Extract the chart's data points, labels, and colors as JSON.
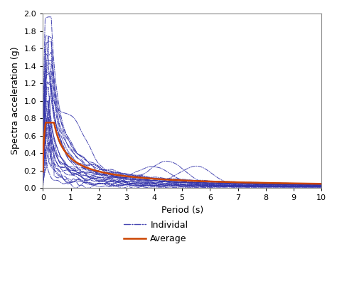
{
  "title": "",
  "xlabel": "Period (s)",
  "ylabel": "Spectra acceleration (g)",
  "xlim": [
    0,
    10
  ],
  "ylim": [
    0,
    2
  ],
  "xticks": [
    0,
    1,
    2,
    3,
    4,
    5,
    6,
    7,
    8,
    9,
    10
  ],
  "yticks": [
    0,
    0.2,
    0.4,
    0.6,
    0.8,
    1.0,
    1.2,
    1.4,
    1.6,
    1.8,
    2.0
  ],
  "individual_color": "#3333aa",
  "average_color": "#cc4400",
  "legend_labels": [
    "Individal",
    "Average"
  ],
  "background_color": "#ffffff",
  "spectra_params": [
    [
      0.08,
      1.95,
      0.5,
      0.3,
      1.1,
      0.0,
      null,
      0
    ],
    [
      0.1,
      1.75,
      0.5,
      0.3,
      1.05,
      0.0,
      null,
      0
    ],
    [
      0.12,
      1.65,
      0.5,
      0.3,
      1.0,
      0.0,
      null,
      0
    ],
    [
      0.1,
      1.55,
      0.5,
      0.3,
      1.05,
      0.0,
      null,
      0
    ],
    [
      0.12,
      1.45,
      0.5,
      0.3,
      1.0,
      0.0,
      null,
      0
    ],
    [
      0.15,
      1.4,
      0.5,
      0.25,
      1.0,
      0.0,
      null,
      0
    ],
    [
      0.1,
      1.35,
      0.5,
      0.3,
      1.05,
      0.0,
      null,
      0
    ],
    [
      0.12,
      1.3,
      0.5,
      0.25,
      1.0,
      0.0,
      null,
      0
    ],
    [
      0.15,
      1.25,
      0.5,
      0.25,
      1.0,
      0.0,
      null,
      0
    ],
    [
      0.1,
      1.2,
      0.5,
      0.3,
      1.05,
      0.0,
      null,
      0
    ],
    [
      0.2,
      1.55,
      0.6,
      0.15,
      0.9,
      0.0,
      1.0,
      0.55
    ],
    [
      0.15,
      1.15,
      0.5,
      0.2,
      1.0,
      0.0,
      null,
      0
    ],
    [
      0.25,
      1.1,
      0.6,
      0.2,
      0.95,
      0.0,
      null,
      0
    ],
    [
      0.1,
      1.05,
      0.5,
      0.2,
      1.05,
      0.0,
      null,
      0
    ],
    [
      0.15,
      1.0,
      0.55,
      0.18,
      1.0,
      0.0,
      null,
      0
    ],
    [
      0.2,
      0.95,
      0.6,
      0.15,
      0.9,
      0.0,
      null,
      0
    ],
    [
      0.12,
      0.9,
      0.5,
      0.22,
      1.0,
      0.0,
      null,
      0
    ],
    [
      0.18,
      0.85,
      0.55,
      0.2,
      0.95,
      0.35,
      4.5,
      0.25
    ],
    [
      0.15,
      0.8,
      0.5,
      0.18,
      1.0,
      0.0,
      null,
      0
    ],
    [
      0.2,
      0.75,
      0.55,
      0.15,
      0.9,
      0.28,
      5.5,
      0.22
    ],
    [
      0.25,
      0.7,
      0.6,
      0.12,
      0.85,
      0.32,
      4.0,
      0.18
    ],
    [
      0.15,
      0.65,
      0.5,
      0.15,
      1.0,
      0.0,
      null,
      0
    ],
    [
      0.3,
      0.6,
      0.65,
      0.1,
      0.8,
      0.0,
      null,
      0
    ],
    [
      0.2,
      0.55,
      0.55,
      0.12,
      0.9,
      0.0,
      null,
      0
    ],
    [
      0.4,
      0.5,
      0.7,
      0.08,
      0.75,
      0.0,
      null,
      0
    ],
    [
      0.1,
      0.45,
      0.5,
      0.08,
      1.05,
      0.0,
      null,
      0
    ]
  ]
}
